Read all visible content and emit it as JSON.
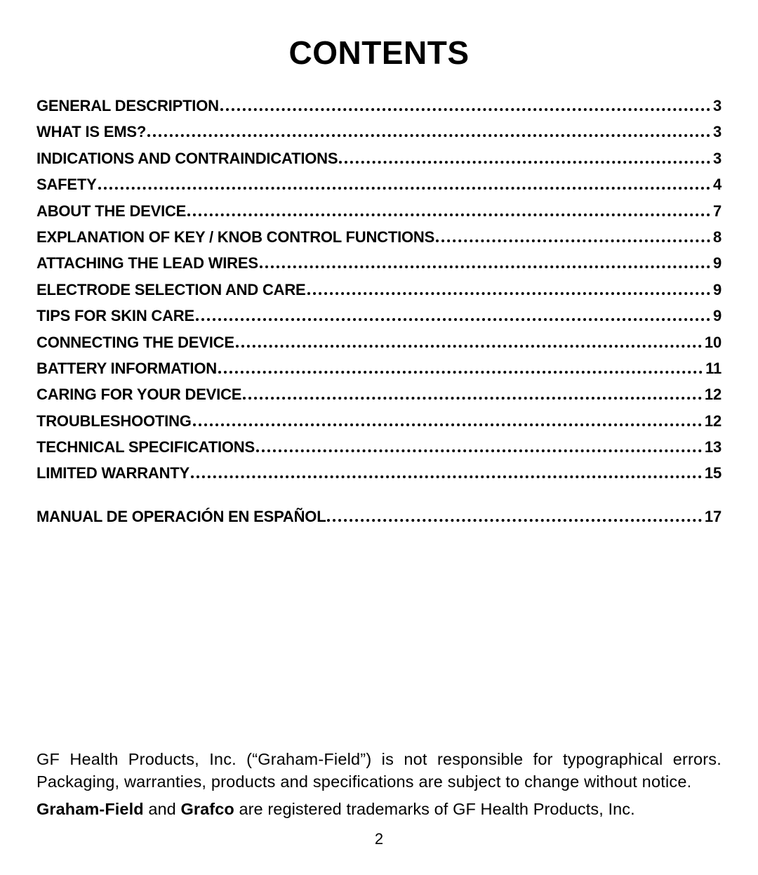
{
  "title": "CONTENTS",
  "toc": {
    "entries": [
      {
        "label": "General Description",
        "page": "3"
      },
      {
        "label": "What is EMS?",
        "page": "3"
      },
      {
        "label": "Indications and Contraindications",
        "page": "3"
      },
      {
        "label": "Safety",
        "page": "4"
      },
      {
        "label": "About the Device",
        "page": "7"
      },
      {
        "label": "Explanation of Key / Knob Control Functions",
        "page": "8"
      },
      {
        "label": "Attaching the Lead Wires",
        "page": "9"
      },
      {
        "label": "Electrode Selection and Care",
        "page": "9"
      },
      {
        "label": "Tips for Skin Care",
        "page": "9"
      },
      {
        "label": "Connecting the Device",
        "page": "10"
      },
      {
        "label": "Battery Information",
        "page": "11"
      },
      {
        "label": "Caring for Your Device",
        "page": "12"
      },
      {
        "label": "Troubleshooting",
        "page": "12"
      },
      {
        "label": "Technical Specifications",
        "page": "13"
      },
      {
        "label": "Limited Warranty",
        "page": "15"
      }
    ],
    "gap_after_index": 14,
    "extra_entries": [
      {
        "label": "Manual de Operación en Español",
        "page": "17"
      }
    ]
  },
  "footer": {
    "disclaimer": "GF Health Products, Inc. (“Graham-Field”) is not responsible for typographical errors. Packaging, warranties, products and specifications are subject to change without notice.",
    "trademark_bold1": "Graham-Field",
    "trademark_mid1": " and ",
    "trademark_bold2": "Grafco",
    "trademark_rest": " are registered trademarks of GF Health Products, Inc.",
    "page_number": "2"
  },
  "style": {
    "text_color": "#000000",
    "background_color": "#ffffff",
    "title_fontsize": 46,
    "toc_fontsize": 22,
    "body_fontsize": 23.5
  }
}
